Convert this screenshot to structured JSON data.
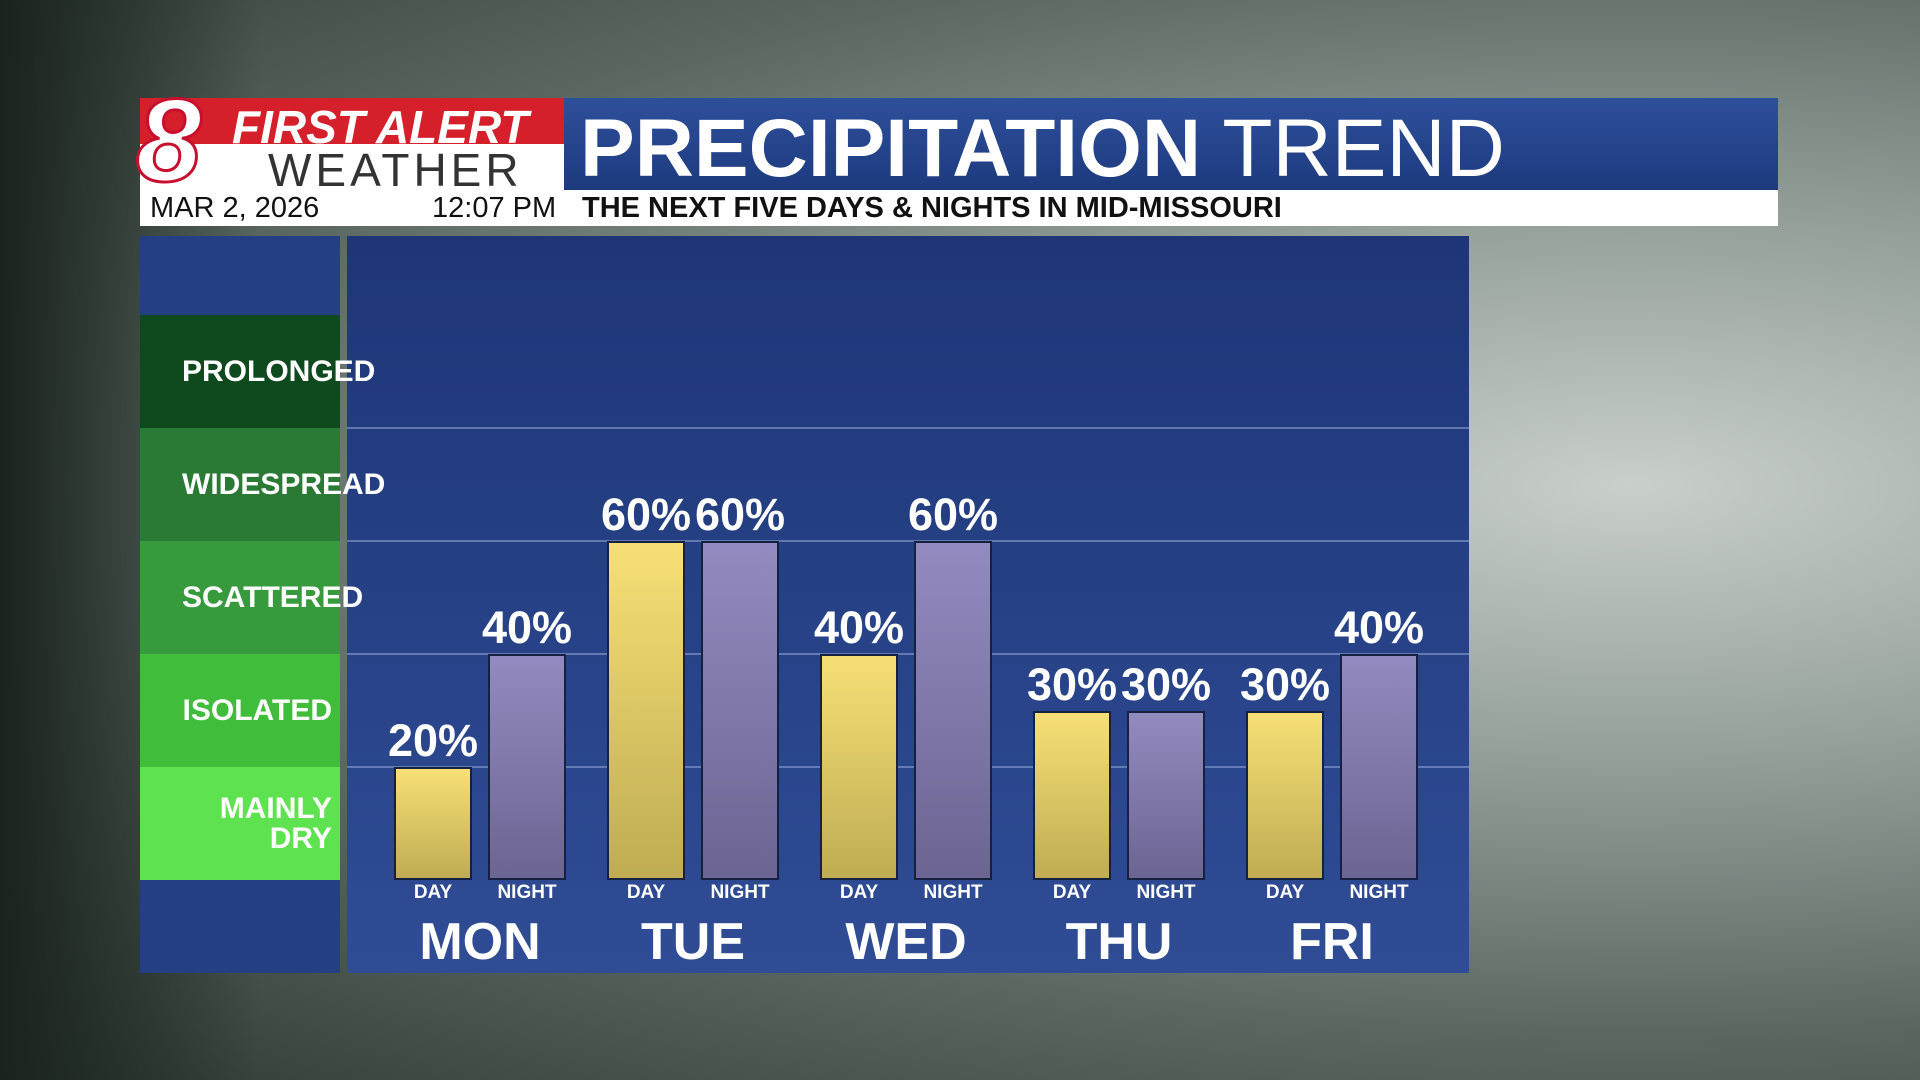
{
  "header": {
    "logo_number": "8",
    "brand_top": "FIRST ALERT",
    "brand_bottom": "WEATHER",
    "date": "MAR 2, 2026",
    "time": "12:07 PM"
  },
  "chart_data": {
    "type": "bar",
    "title": "PRECIPITATION",
    "title_light": "TREND",
    "subtitle": "THE NEXT FIVE DAYS & NIGHTS IN MID-MISSOURI",
    "categories": [
      "MON",
      "TUE",
      "WED",
      "THU",
      "FRI"
    ],
    "series": [
      {
        "name": "DAY",
        "color": "#f5dd6a",
        "values": [
          20,
          60,
          40,
          30,
          30
        ],
        "value_labels": [
          "20%",
          "60%",
          "40%",
          "30%",
          "30%"
        ]
      },
      {
        "name": "NIGHT",
        "color": "#8a81bb",
        "values": [
          40,
          60,
          60,
          30,
          40
        ],
        "value_labels": [
          "40%",
          "60%",
          "60%",
          "30%",
          "40%"
        ]
      }
    ],
    "ylim": [
      0,
      100
    ],
    "yticks": [
      20,
      40,
      60,
      80
    ],
    "grid": true,
    "levels": [
      {
        "label": "MAINLY DRY",
        "range": [
          0,
          20
        ],
        "color": "#5fe24f"
      },
      {
        "label": "ISOLATED",
        "range": [
          20,
          40
        ],
        "color": "#40bd3a"
      },
      {
        "label": "SCATTERED",
        "range": [
          40,
          60
        ],
        "color": "#379a3d"
      },
      {
        "label": "WIDESPREAD",
        "range": [
          60,
          80
        ],
        "color": "#2a7a35"
      },
      {
        "label": "PROLONGED",
        "range": [
          80,
          100
        ],
        "color": "#0f4a1f"
      }
    ]
  }
}
